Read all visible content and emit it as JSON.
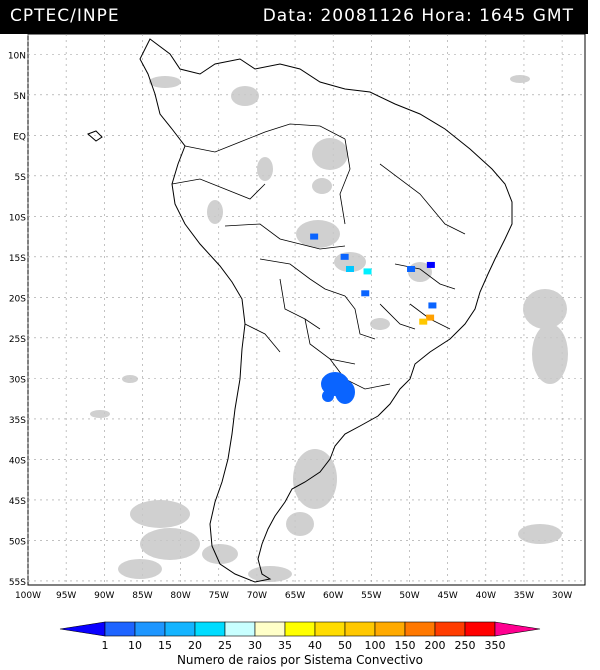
{
  "header": {
    "source": "CPTEC/INPE",
    "datetime": "Data: 20081126 Hora: 1645 GMT"
  },
  "map": {
    "lat_labels": [
      "10N",
      "5N",
      "EQ",
      "5S",
      "10S",
      "15S",
      "20S",
      "25S",
      "30S",
      "35S",
      "40S",
      "45S",
      "50S",
      "55S"
    ],
    "lon_labels": [
      "100W",
      "95W",
      "90W",
      "85W",
      "80W",
      "75W",
      "70W",
      "65W",
      "60W",
      "55W",
      "50W",
      "45W",
      "40W",
      "35W",
      "30W"
    ],
    "grid": true,
    "cloud_color": "#c8c8c8",
    "convective_cells": [
      {
        "lon": -62.5,
        "lat": -12.5,
        "class": "10",
        "color": "#0a64ff"
      },
      {
        "lon": -58.5,
        "lat": -15.0,
        "class": "10",
        "color": "#0a64ff"
      },
      {
        "lon": -57.8,
        "lat": -16.5,
        "class": "20",
        "color": "#00c8ff"
      },
      {
        "lon": -55.5,
        "lat": -16.8,
        "class": "25",
        "color": "#00f0ff"
      },
      {
        "lon": -49.8,
        "lat": -16.5,
        "class": "10",
        "color": "#0a64ff"
      },
      {
        "lon": -47.2,
        "lat": -16.0,
        "class": "1",
        "color": "#0000ff"
      },
      {
        "lon": -55.8,
        "lat": -19.5,
        "class": "10",
        "color": "#0a64ff"
      },
      {
        "lon": -47.0,
        "lat": -21.0,
        "class": "10",
        "color": "#0a64ff"
      },
      {
        "lon": -47.3,
        "lat": -22.5,
        "class": "150",
        "color": "#ffa000"
      },
      {
        "lon": -48.2,
        "lat": -23.0,
        "class": "100",
        "color": "#ffc800"
      },
      {
        "lon": -59.5,
        "lat": -31.2,
        "class": "10",
        "color": "#0a64ff"
      }
    ]
  },
  "colorbar": {
    "title": "Numero de raios por Sistema Convectivo",
    "labels": [
      "1",
      "10",
      "15",
      "20",
      "25",
      "30",
      "35",
      "40",
      "50",
      "100",
      "150",
      "200",
      "250",
      "350"
    ],
    "colors": [
      "#0a00ff",
      "#1e64ff",
      "#1e96ff",
      "#14b4ff",
      "#00dcff",
      "#c8ffff",
      "#ffffc8",
      "#ffff00",
      "#ffdc00",
      "#ffc800",
      "#ffaa00",
      "#ff7800",
      "#ff3c00",
      "#ff0000",
      "#ff0090"
    ]
  }
}
